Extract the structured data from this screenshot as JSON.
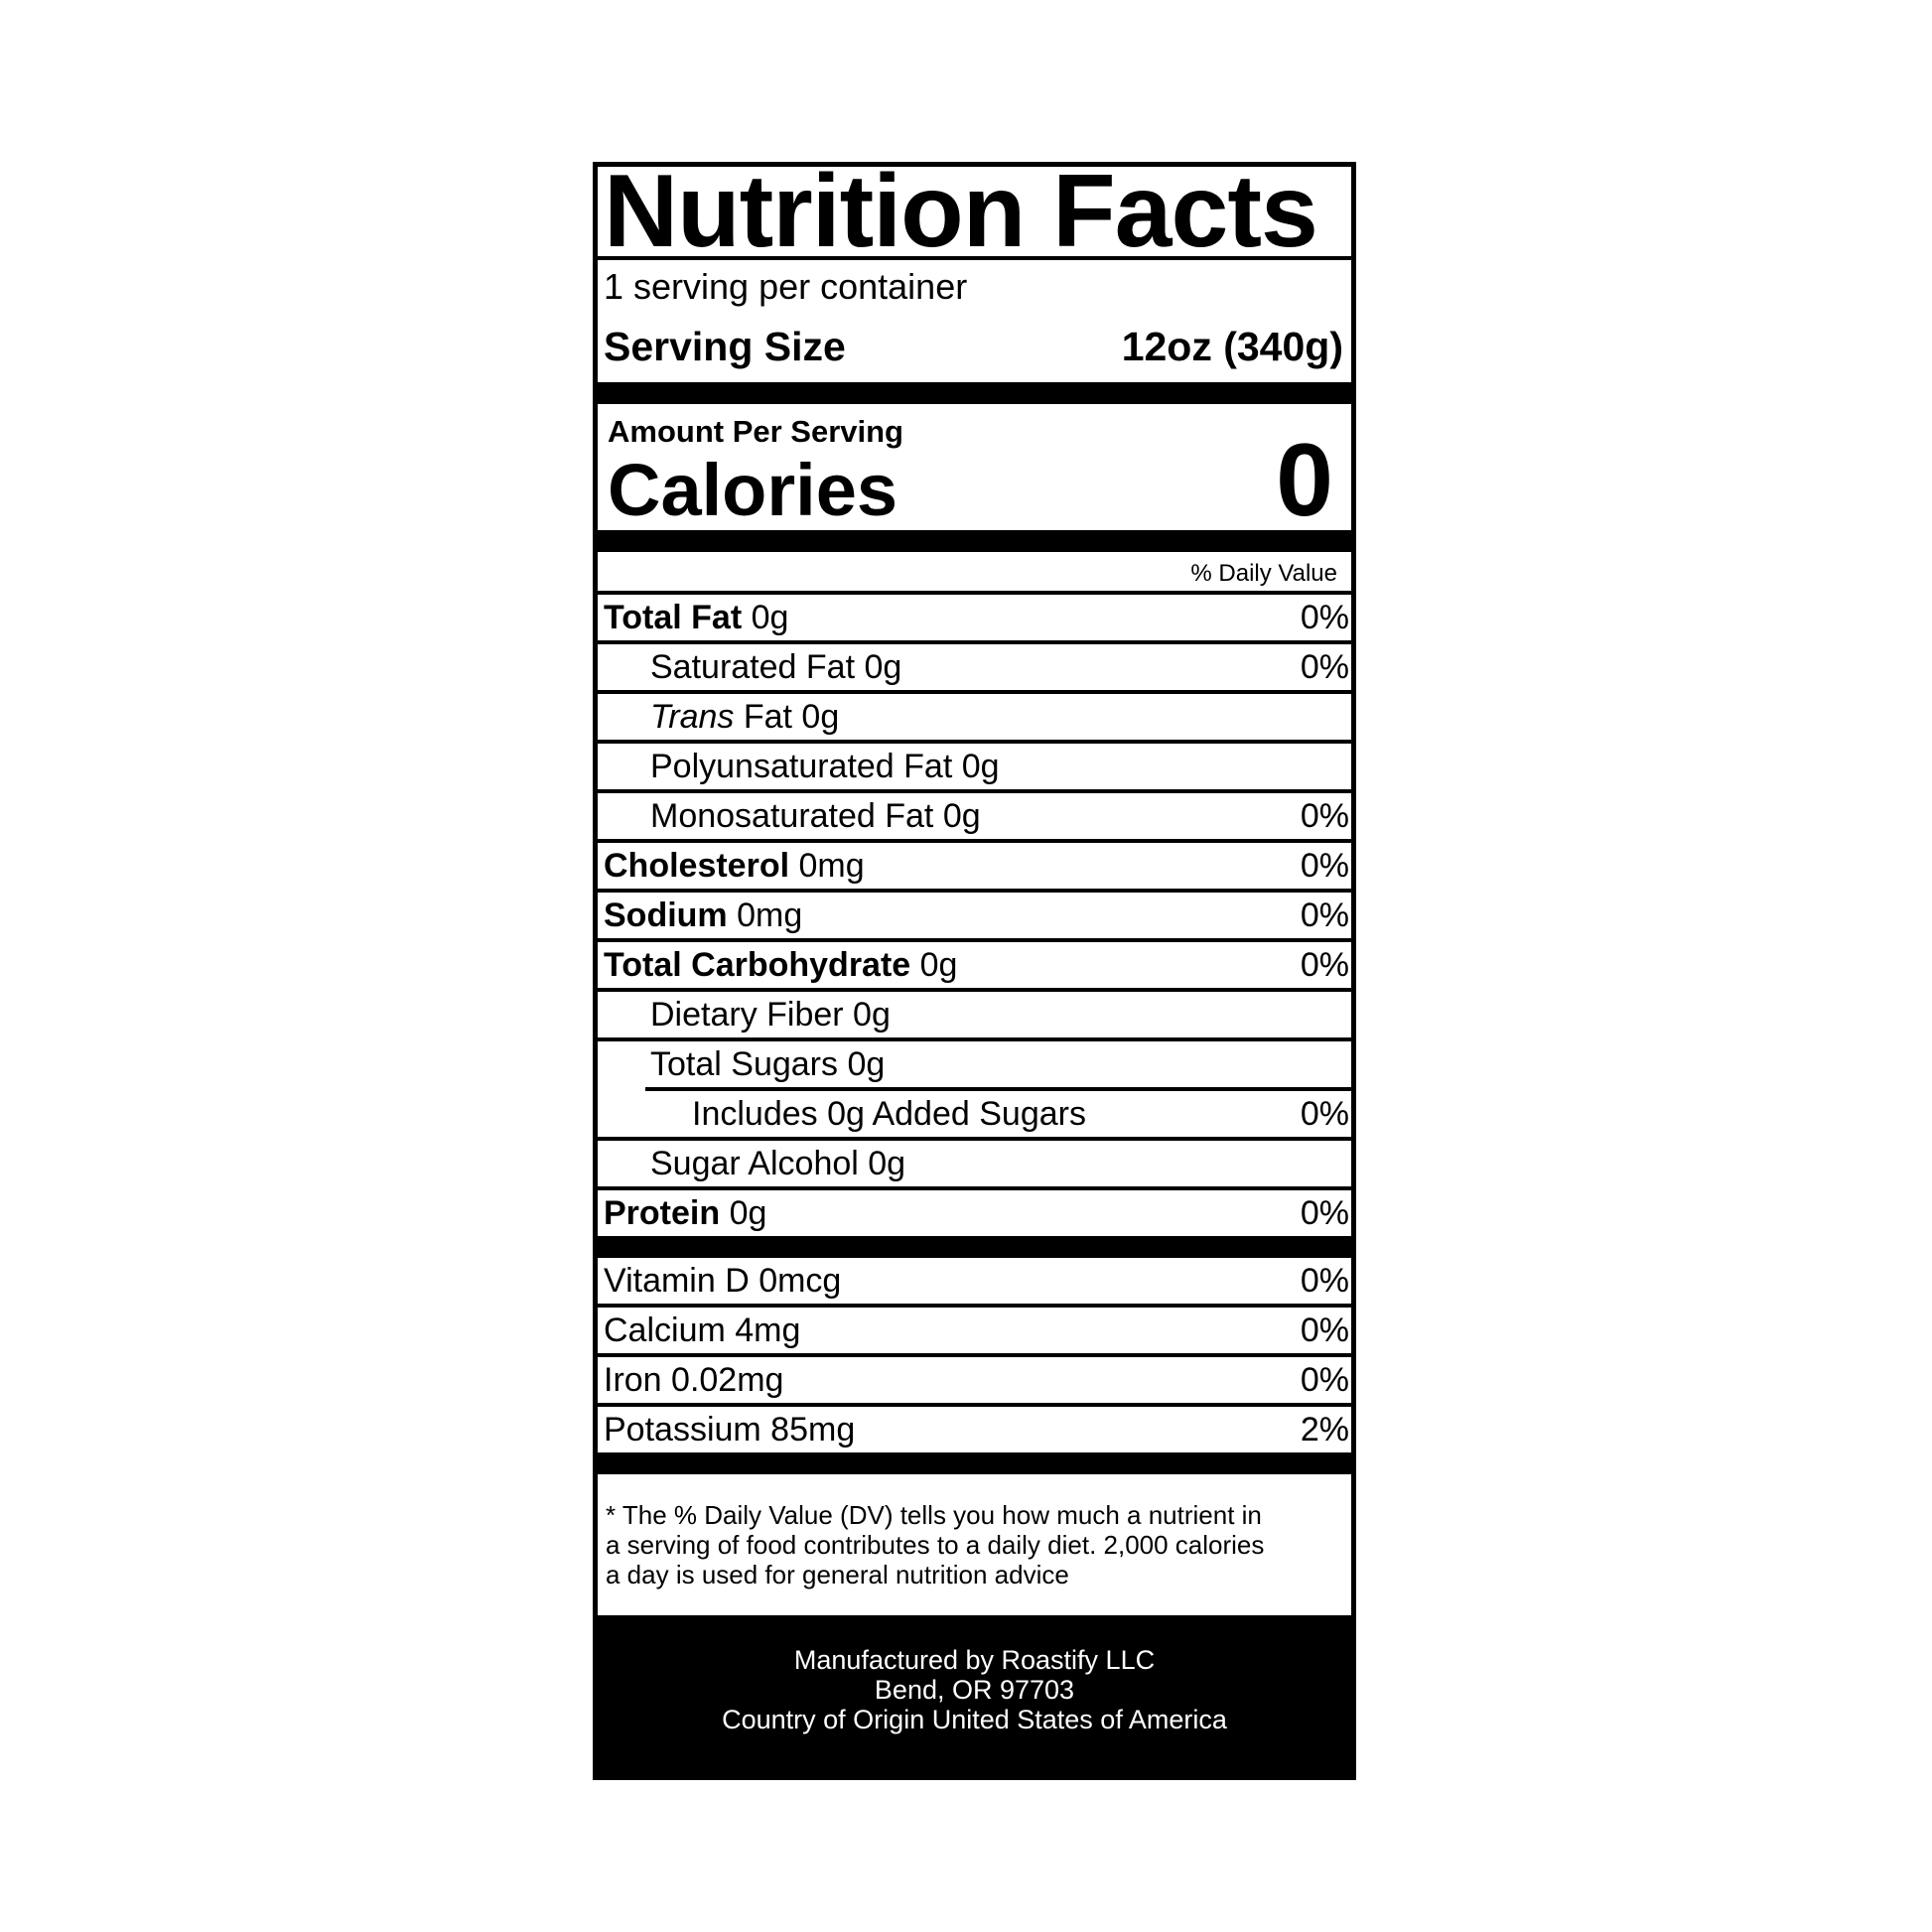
{
  "title": "Nutrition Facts",
  "servings_per_container": "1 serving per container",
  "serving_size": {
    "label": "Serving Size",
    "value": "12oz (340g)"
  },
  "amount_per_serving": "Amount Per Serving",
  "calories": {
    "label": "Calories",
    "value": "0"
  },
  "daily_value_header": "% Daily Value",
  "nutrients": [
    {
      "label": "Total Fat",
      "amount": "0g",
      "dv": "0%"
    },
    {
      "label": "Saturated Fat 0g",
      "dv": "0%"
    },
    {
      "label_italic": "Trans",
      "label": " Fat 0g",
      "dv": ""
    },
    {
      "label": "Polyunsaturated Fat 0g",
      "dv": ""
    },
    {
      "label": "Monosaturated Fat 0g",
      "dv": "0%"
    },
    {
      "label": "Cholesterol",
      "amount": "0mg",
      "dv": "0%"
    },
    {
      "label": "Sodium",
      "amount": "0mg",
      "dv": "0%"
    },
    {
      "label": "Total Carbohydrate",
      "amount": "0g",
      "dv": "0%"
    },
    {
      "label": "Dietary Fiber 0g",
      "dv": ""
    },
    {
      "label": "Total Sugars 0g",
      "dv": ""
    },
    {
      "label": "Includes 0g Added Sugars",
      "dv": "0%"
    },
    {
      "label": "Sugar Alcohol 0g",
      "dv": ""
    },
    {
      "label": "Protein",
      "amount": "0g",
      "dv": "0%"
    }
  ],
  "vitamins": [
    {
      "label": "Vitamin D 0mcg",
      "dv": "0%"
    },
    {
      "label": "Calcium 4mg",
      "dv": "0%"
    },
    {
      "label": "Iron 0.02mg",
      "dv": "0%"
    },
    {
      "label": "Potassium 85mg",
      "dv": "2%"
    }
  ],
  "footnote": [
    "* The % Daily Value (DV) tells you how much a nutrient in",
    "a serving of food contributes to a daily diet. 2,000 calories",
    "a day is used for general nutrition advice"
  ],
  "manufacturer": [
    "Manufactured by Roastify LLC",
    "Bend, OR 97703",
    "Country of Origin United States of America"
  ]
}
